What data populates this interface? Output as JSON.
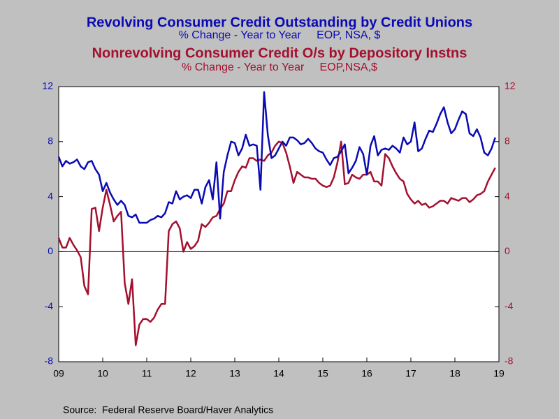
{
  "chart_data": {
    "type": "line",
    "series": [
      {
        "name": "Revolving Consumer Credit Outstanding by Credit Unions",
        "subtitle": "% Change - Year to Year     EOP, NSA, $",
        "color": "#0a0ab4",
        "axis": "y",
        "values": [
          6.9,
          6.2,
          6.6,
          6.4,
          6.5,
          6.7,
          6.2,
          6.0,
          6.5,
          6.6,
          6.0,
          5.6,
          4.4,
          5.0,
          4.3,
          3.8,
          3.4,
          3.7,
          3.4,
          2.6,
          2.5,
          2.7,
          2.1,
          2.1,
          2.1,
          2.3,
          2.4,
          2.6,
          2.5,
          2.8,
          3.6,
          3.5,
          4.4,
          3.8,
          4.0,
          4.1,
          3.9,
          4.5,
          4.5,
          3.5,
          4.7,
          5.2,
          3.8,
          6.5,
          2.4,
          5.8,
          7.0,
          8.0,
          7.9,
          7.0,
          7.5,
          8.5,
          7.7,
          7.8,
          7.7,
          4.5,
          11.6,
          8.5,
          6.8,
          7.0,
          7.5,
          8.0,
          7.7,
          8.3,
          8.3,
          8.1,
          7.8,
          7.9,
          8.2,
          7.9,
          7.5,
          7.3,
          7.2,
          6.7,
          6.3,
          6.8,
          6.9,
          7.3,
          7.8,
          5.7,
          6.1,
          6.6,
          7.6,
          7.1,
          5.6,
          7.7,
          8.4,
          7.0,
          7.4,
          7.5,
          7.4,
          7.7,
          7.5,
          7.2,
          8.3,
          7.8,
          8.0,
          9.4,
          7.3,
          7.5,
          8.2,
          8.8,
          8.7,
          9.3,
          10.0,
          10.5,
          9.4,
          8.6,
          8.9,
          9.6,
          10.2,
          10.0,
          8.6,
          8.4,
          8.9,
          8.3,
          7.2,
          7.0,
          7.5,
          8.3,
          null
        ]
      },
      {
        "name": "Nonrevolving Consumer Credit O/s by Depository Instns",
        "subtitle": "% Change - Year to Year     EOP,NSA,$",
        "color": "#a3102e",
        "axis": "y2",
        "values": [
          1.0,
          0.3,
          0.3,
          1.0,
          0.5,
          0.1,
          -0.4,
          -2.5,
          -3.1,
          3.1,
          3.2,
          1.5,
          3.2,
          4.5,
          3.4,
          2.2,
          2.6,
          2.9,
          -2.3,
          -3.8,
          -2.0,
          -6.8,
          -5.3,
          -4.9,
          -4.9,
          -5.1,
          -4.8,
          -4.2,
          -3.8,
          -3.8,
          1.5,
          2.0,
          2.2,
          1.7,
          0.0,
          0.7,
          0.2,
          0.4,
          0.8,
          2.0,
          1.8,
          2.1,
          2.5,
          2.6,
          3.1,
          3.5,
          4.4,
          4.4,
          5.2,
          5.8,
          6.2,
          6.1,
          6.8,
          6.8,
          6.6,
          6.7,
          6.6,
          7.0,
          7.2,
          7.7,
          8.0,
          7.9,
          7.2,
          6.2,
          5.0,
          5.8,
          5.6,
          5.4,
          5.4,
          5.3,
          5.3,
          5.0,
          4.8,
          4.7,
          4.8,
          5.4,
          6.5,
          8.0,
          4.9,
          5.0,
          5.6,
          5.4,
          5.3,
          5.6,
          5.6,
          5.8,
          5.1,
          5.1,
          4.8,
          7.1,
          6.8,
          6.2,
          5.7,
          5.3,
          5.1,
          4.2,
          3.8,
          3.5,
          3.7,
          3.4,
          3.5,
          3.2,
          3.3,
          3.5,
          3.7,
          3.7,
          3.5,
          3.9,
          3.8,
          3.7,
          3.9,
          3.9,
          3.6,
          3.8,
          4.1,
          4.2,
          4.4,
          5.1,
          5.6,
          6.1,
          null
        ]
      }
    ],
    "categories": [
      "09",
      null,
      null,
      null,
      null,
      null,
      null,
      null,
      null,
      null,
      null,
      null,
      "10",
      null,
      null,
      null,
      null,
      null,
      null,
      null,
      null,
      null,
      null,
      null,
      "11",
      null,
      null,
      null,
      null,
      null,
      null,
      null,
      null,
      null,
      null,
      null,
      "12",
      null,
      null,
      null,
      null,
      null,
      null,
      null,
      null,
      null,
      null,
      null,
      "13",
      null,
      null,
      null,
      null,
      null,
      null,
      null,
      null,
      null,
      null,
      null,
      "14",
      null,
      null,
      null,
      null,
      null,
      null,
      null,
      null,
      null,
      null,
      null,
      "15",
      null,
      null,
      null,
      null,
      null,
      null,
      null,
      null,
      null,
      null,
      null,
      "16",
      null,
      null,
      null,
      null,
      null,
      null,
      null,
      null,
      null,
      null,
      null,
      "17",
      null,
      null,
      null,
      null,
      null,
      null,
      null,
      null,
      null,
      null,
      null,
      "18",
      null,
      null,
      null,
      null,
      null,
      null,
      null,
      null,
      null,
      null,
      null,
      "19"
    ],
    "ylim": [
      -8,
      12
    ],
    "yticks": [
      -8,
      -4,
      0,
      4,
      8,
      12
    ],
    "y2lim": [
      -8,
      12
    ],
    "y2ticks": [
      -8,
      -4,
      0,
      4,
      8,
      12
    ],
    "zero_line": true,
    "source": "Source:  Federal Reserve Board/Haver Analytics"
  }
}
